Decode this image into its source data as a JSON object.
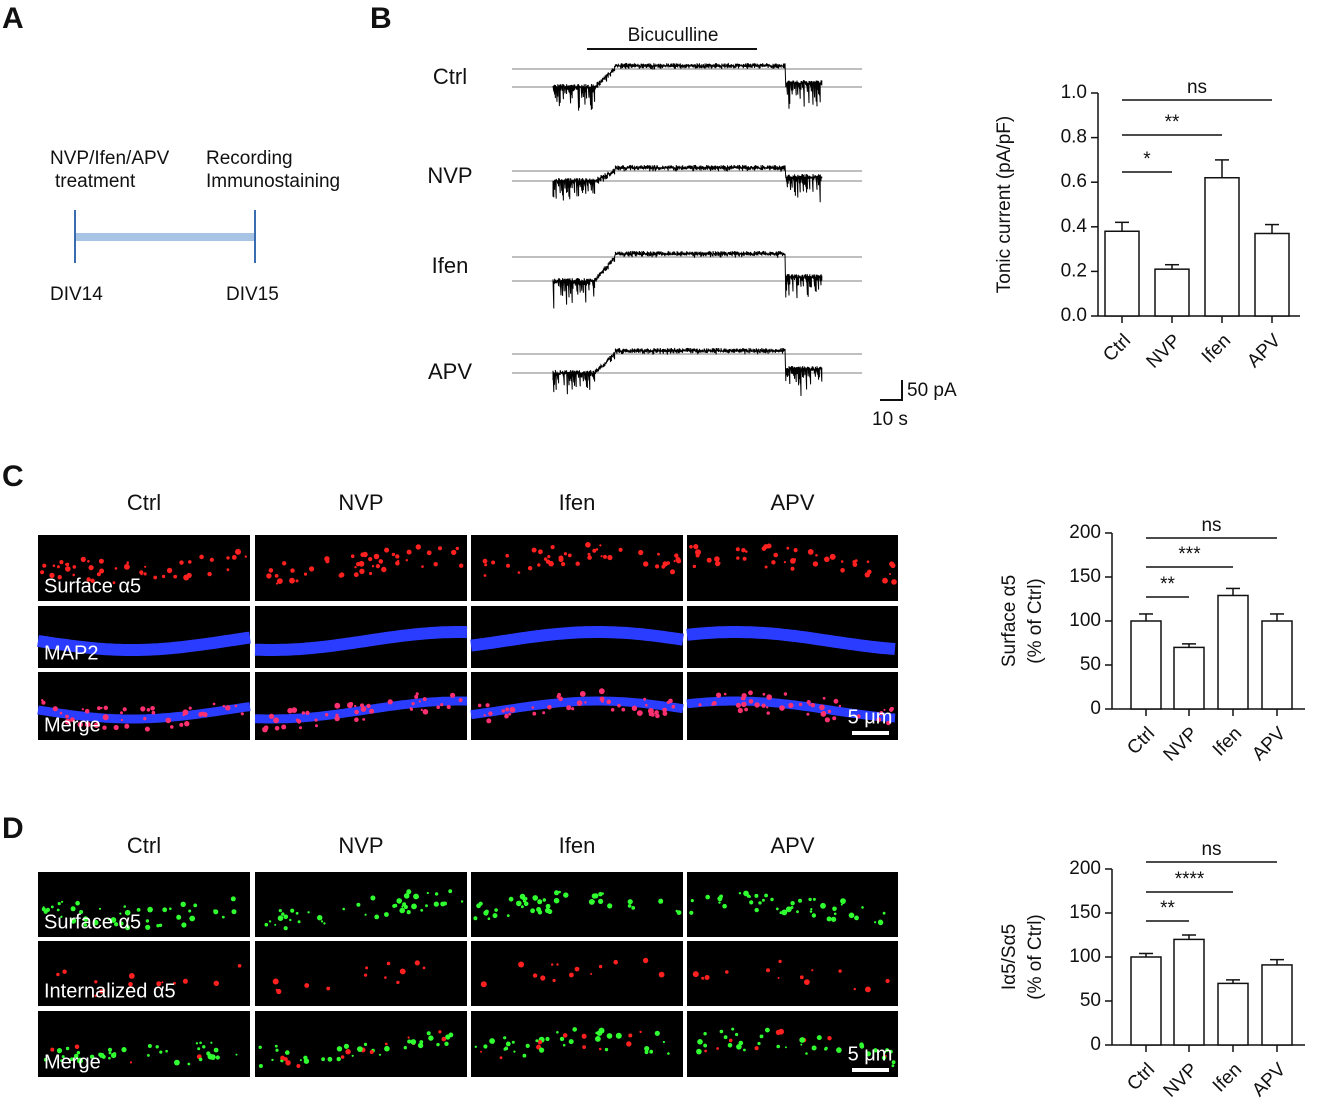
{
  "panel_labels": [
    "A",
    "B",
    "C",
    "D"
  ],
  "timeline": {
    "treatment": [
      "NVP/Ifen/APV",
      "treatment"
    ],
    "endpoint": [
      "Recording",
      "Immunostaining"
    ],
    "start": "DIV14",
    "end": "DIV15"
  },
  "traces": {
    "drug": "Bicuculline",
    "labels": [
      "Ctrl",
      "NVP",
      "Ifen",
      "APV"
    ],
    "scale_y": "50 pA",
    "scale_x": "10 s"
  },
  "images": [
    {
      "columns": [
        "Ctrl",
        "NVP",
        "Ifen",
        "APV"
      ],
      "rows": [
        "Surface α5",
        "MAP2",
        "Merge"
      ],
      "scale": "5 μm"
    },
    {
      "columns": [
        "Ctrl",
        "NVP",
        "Ifen",
        "APV"
      ],
      "rows": [
        "Surface α5",
        "Internalized α5",
        "Merge"
      ],
      "scale": "5 μm"
    }
  ],
  "chart_data": [
    {
      "type": "bar",
      "ylabel": [
        "Tonic current (pA/pF)"
      ],
      "categories": [
        "Ctrl",
        "NVP",
        "Ifen",
        "APV"
      ],
      "values": [
        0.38,
        0.21,
        0.62,
        0.37
      ],
      "errors": [
        0.04,
        0.02,
        0.08,
        0.04
      ],
      "color": "#ffffff",
      "ylim": [
        0,
        1
      ],
      "yticks": [
        {
          "value": 0,
          "label": "0.0"
        },
        {
          "value": 0.2,
          "label": "0.2"
        },
        {
          "value": 0.4,
          "label": "0.4"
        },
        {
          "value": 0.6,
          "label": "0.6"
        },
        {
          "value": 0.8,
          "label": "0.8"
        },
        {
          "value": 1,
          "label": "1.0"
        }
      ],
      "annotations": [
        {
          "label": "ns",
          "pair": [
            0,
            3
          ]
        },
        {
          "label": "**",
          "pair": [
            0,
            2
          ]
        },
        {
          "label": "*",
          "pair": [
            0,
            1
          ]
        }
      ]
    },
    {
      "type": "bar",
      "ylabel": [
        "Surface α5",
        "(% of Ctrl)"
      ],
      "categories": [
        "Ctrl",
        "NVP",
        "Ifen",
        "APV"
      ],
      "values": [
        100,
        70,
        129,
        100
      ],
      "errors": [
        8,
        4,
        8,
        8
      ],
      "color": "#ffffff",
      "ylim": [
        0,
        200
      ],
      "yticks": [
        0,
        50,
        100,
        150,
        200
      ],
      "annotations": [
        {
          "label": "ns",
          "pair": [
            0,
            3
          ]
        },
        {
          "label": "***",
          "pair": [
            0,
            2
          ]
        },
        {
          "label": "**",
          "pair": [
            0,
            1
          ]
        }
      ]
    },
    {
      "type": "bar",
      "ylabel": [
        "Iα5/Sα5",
        "(% of Ctrl)"
      ],
      "categories": [
        "Ctrl",
        "NVP",
        "Ifen",
        "APV"
      ],
      "values": [
        100,
        120,
        70,
        91
      ],
      "errors": [
        4,
        5,
        4,
        6
      ],
      "color": "#ffffff",
      "ylim": [
        0,
        200
      ],
      "yticks": [
        0,
        50,
        100,
        150,
        200
      ],
      "annotations": [
        {
          "label": "ns",
          "pair": [
            0,
            3
          ]
        },
        {
          "label": "****",
          "pair": [
            0,
            2
          ]
        },
        {
          "label": "**",
          "pair": [
            0,
            1
          ]
        }
      ]
    }
  ]
}
